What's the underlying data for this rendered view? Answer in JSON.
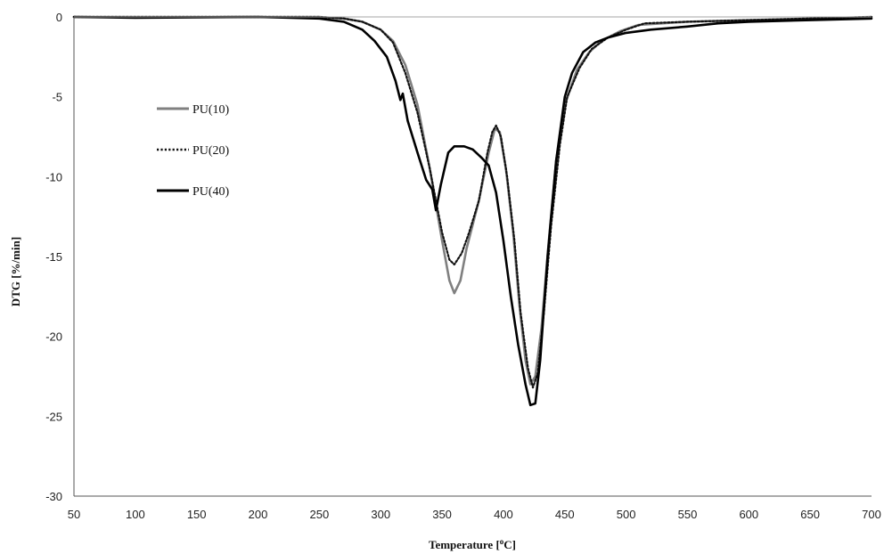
{
  "chart_data": {
    "type": "line",
    "xlabel": "Temperature  [",
    "xlabel_sup": "o",
    "xlabel_unit": "C]",
    "ylabel": "DTG [%/min]",
    "xlim": [
      50,
      700
    ],
    "ylim": [
      -30,
      0
    ],
    "xticks": [
      "50",
      "100",
      "150",
      "200",
      "250",
      "300",
      "350",
      "400",
      "450",
      "500",
      "550",
      "600",
      "650",
      "700"
    ],
    "yticks": [
      "0",
      "-5",
      "-10",
      "-15",
      "-20",
      "-25",
      "-30"
    ],
    "grid": false,
    "legend_position": "left-upper",
    "series": [
      {
        "name": "PU(10)",
        "color": "#808080",
        "style": "solid",
        "points": [
          [
            50,
            0
          ],
          [
            100,
            0
          ],
          [
            200,
            0
          ],
          [
            250,
            0
          ],
          [
            270,
            -0.1
          ],
          [
            285,
            -0.3
          ],
          [
            300,
            -0.8
          ],
          [
            310,
            -1.5
          ],
          [
            320,
            -3
          ],
          [
            330,
            -5.5
          ],
          [
            340,
            -9.5
          ],
          [
            350,
            -14
          ],
          [
            356,
            -16.5
          ],
          [
            360,
            -17.3
          ],
          [
            365,
            -16.5
          ],
          [
            370,
            -14.5
          ],
          [
            380,
            -11.5
          ],
          [
            388,
            -8.5
          ],
          [
            393,
            -7
          ],
          [
            397,
            -7.2
          ],
          [
            402,
            -9.5
          ],
          [
            408,
            -13.5
          ],
          [
            413,
            -18
          ],
          [
            418,
            -21.5
          ],
          [
            422,
            -23
          ],
          [
            426,
            -22.5
          ],
          [
            431,
            -19.5
          ],
          [
            437,
            -14
          ],
          [
            443,
            -9
          ],
          [
            450,
            -5.5
          ],
          [
            460,
            -3.3
          ],
          [
            470,
            -2.2
          ],
          [
            480,
            -1.5
          ],
          [
            495,
            -0.9
          ],
          [
            510,
            -0.5
          ],
          [
            550,
            -0.3
          ],
          [
            600,
            -0.2
          ],
          [
            650,
            -0.1
          ],
          [
            700,
            0
          ]
        ]
      },
      {
        "name": "PU(20)",
        "color": "#111111",
        "style": "dotted",
        "points": [
          [
            50,
            0
          ],
          [
            100,
            0
          ],
          [
            200,
            0
          ],
          [
            250,
            0
          ],
          [
            270,
            -0.1
          ],
          [
            285,
            -0.3
          ],
          [
            300,
            -0.8
          ],
          [
            310,
            -1.6
          ],
          [
            320,
            -3.5
          ],
          [
            330,
            -6
          ],
          [
            340,
            -9.5
          ],
          [
            350,
            -13.5
          ],
          [
            356,
            -15.2
          ],
          [
            360,
            -15.5
          ],
          [
            366,
            -14.8
          ],
          [
            372,
            -13.5
          ],
          [
            380,
            -11.5
          ],
          [
            387,
            -8.5
          ],
          [
            391,
            -7.2
          ],
          [
            394,
            -6.8
          ],
          [
            398,
            -7.5
          ],
          [
            403,
            -10
          ],
          [
            409,
            -14
          ],
          [
            414,
            -18.5
          ],
          [
            420,
            -22
          ],
          [
            424,
            -23.2
          ],
          [
            428,
            -22.3
          ],
          [
            433,
            -18.5
          ],
          [
            439,
            -13
          ],
          [
            446,
            -8
          ],
          [
            452,
            -5
          ],
          [
            462,
            -3.2
          ],
          [
            472,
            -2
          ],
          [
            485,
            -1.3
          ],
          [
            500,
            -0.8
          ],
          [
            515,
            -0.4
          ],
          [
            550,
            -0.3
          ],
          [
            600,
            -0.2
          ],
          [
            650,
            -0.1
          ],
          [
            700,
            0
          ]
        ]
      },
      {
        "name": "PU(40)",
        "color": "#000000",
        "style": "solid",
        "points": [
          [
            50,
            0
          ],
          [
            100,
            -0.05
          ],
          [
            200,
            0
          ],
          [
            250,
            -0.1
          ],
          [
            270,
            -0.3
          ],
          [
            285,
            -0.8
          ],
          [
            295,
            -1.5
          ],
          [
            305,
            -2.5
          ],
          [
            312,
            -4
          ],
          [
            316,
            -5.2
          ],
          [
            318,
            -4.8
          ],
          [
            322,
            -6.5
          ],
          [
            330,
            -8.5
          ],
          [
            337,
            -10.2
          ],
          [
            342,
            -10.8
          ],
          [
            345,
            -12.1
          ],
          [
            349,
            -10.5
          ],
          [
            355,
            -8.5
          ],
          [
            360,
            -8.1
          ],
          [
            368,
            -8.1
          ],
          [
            375,
            -8.3
          ],
          [
            382,
            -8.8
          ],
          [
            388,
            -9.3
          ],
          [
            394,
            -11
          ],
          [
            400,
            -14
          ],
          [
            406,
            -17.5
          ],
          [
            412,
            -20.5
          ],
          [
            418,
            -23
          ],
          [
            422,
            -24.3
          ],
          [
            426,
            -24.2
          ],
          [
            430,
            -21.5
          ],
          [
            436,
            -15
          ],
          [
            443,
            -9
          ],
          [
            450,
            -5
          ],
          [
            456,
            -3.5
          ],
          [
            465,
            -2.2
          ],
          [
            475,
            -1.6
          ],
          [
            485,
            -1.3
          ],
          [
            500,
            -1
          ],
          [
            520,
            -0.8
          ],
          [
            550,
            -0.6
          ],
          [
            575,
            -0.4
          ],
          [
            600,
            -0.3
          ],
          [
            650,
            -0.2
          ],
          [
            700,
            -0.1
          ]
        ]
      }
    ]
  }
}
